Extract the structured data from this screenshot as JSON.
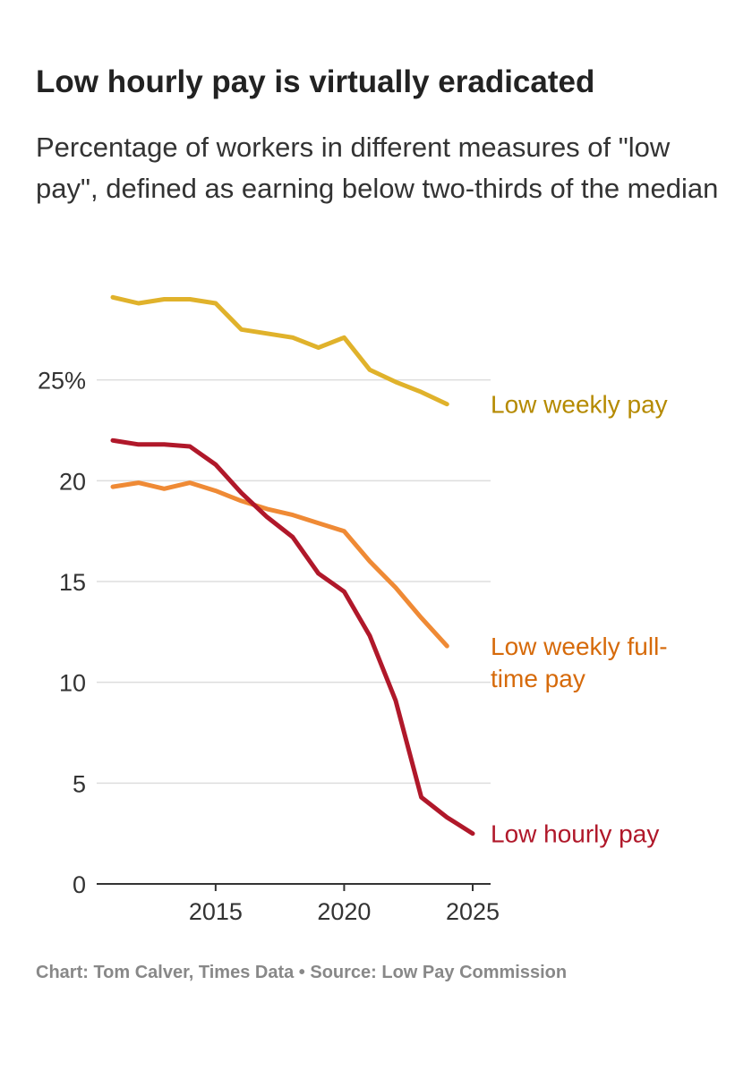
{
  "title": "Low hourly pay is virtually eradicated",
  "subtitle": "Percentage of workers in different measures of \"low pay\", defined as earning below two-thirds of the median",
  "footer": "Chart: Tom Calver, Times Data • Source: Low Pay Commission",
  "chart_data": {
    "type": "line",
    "title": "Low hourly pay is virtually eradicated",
    "xlim": [
      2010.5,
      2025.5
    ],
    "ylim": [
      0,
      30
    ],
    "x_ticks": [
      2015,
      2020,
      2025
    ],
    "x_tick_labels": [
      "2015",
      "2020",
      "2025"
    ],
    "y_ticks": [
      0,
      5,
      10,
      15,
      20,
      25
    ],
    "y_tick_labels": [
      "0",
      "5",
      "10",
      "15",
      "20",
      "25%"
    ],
    "grid": "horizontal",
    "legend": "direct labels at line ends",
    "series": [
      {
        "name": "Low weekly pay",
        "color": "#E0B22B",
        "label_color": "#B58A00",
        "x": [
          2011,
          2012,
          2013,
          2014,
          2015,
          2016,
          2017,
          2018,
          2019,
          2020,
          2021,
          2022,
          2023,
          2024
        ],
        "values": [
          29.1,
          28.8,
          29.0,
          29.0,
          28.8,
          27.5,
          27.3,
          27.1,
          26.6,
          27.1,
          25.5,
          24.9,
          24.4,
          23.8
        ]
      },
      {
        "name": "Low weekly full-time pay",
        "color": "#EF8A35",
        "label_color": "#D66A0A",
        "x": [
          2011,
          2012,
          2013,
          2014,
          2015,
          2016,
          2017,
          2018,
          2019,
          2020,
          2021,
          2022,
          2023,
          2024
        ],
        "values": [
          19.7,
          19.9,
          19.6,
          19.9,
          19.5,
          19.0,
          18.6,
          18.3,
          17.9,
          17.5,
          16.0,
          14.7,
          13.2,
          11.8
        ]
      },
      {
        "name": "Low hourly pay",
        "color": "#B0182A",
        "label_color": "#B0182A",
        "x": [
          2011,
          2012,
          2013,
          2014,
          2015,
          2016,
          2017,
          2018,
          2019,
          2020,
          2021,
          2022,
          2023,
          2024,
          2025
        ],
        "values": [
          22.0,
          21.8,
          21.8,
          21.7,
          20.8,
          19.4,
          18.2,
          17.2,
          15.4,
          14.5,
          12.3,
          9.1,
          4.3,
          3.3,
          2.5
        ]
      }
    ]
  }
}
